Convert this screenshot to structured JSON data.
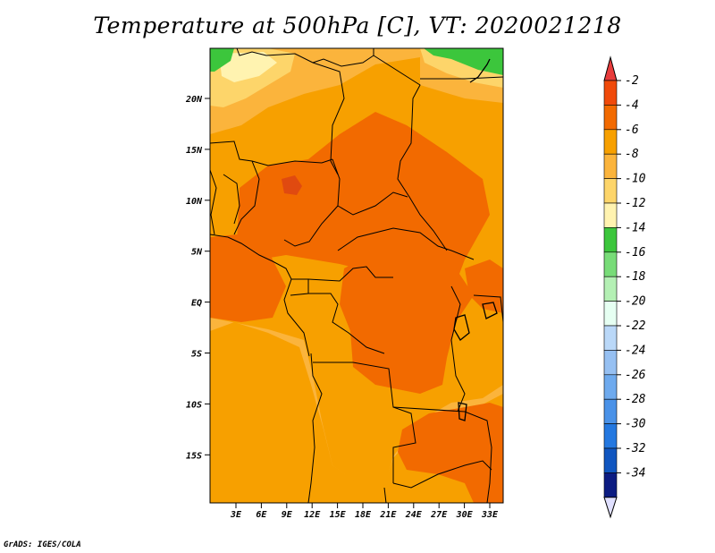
{
  "title": "Temperature at 500hPa [C], VT: 2020021218",
  "credit": "GrADS: IGES/COLA",
  "map": {
    "lat_labels": [
      "20N",
      "15N",
      "10N",
      "5N",
      "EQ",
      "5S",
      "10S",
      "15S"
    ],
    "lon_labels": [
      "3E",
      "6E",
      "9E",
      "12E",
      "15E",
      "18E",
      "21E",
      "24E",
      "27E",
      "30E",
      "33E"
    ],
    "colors": {
      "c0": "#e04a10",
      "c1": "#f26a00",
      "c2": "#f7a000",
      "c3": "#fbb43c",
      "c4": "#fdd56a",
      "c5": "#fff3b0",
      "c6": "#3cc63c"
    }
  },
  "colorbar": {
    "labels": [
      "-2",
      "-4",
      "-6",
      "-8",
      "-10",
      "-12",
      "-14",
      "-16",
      "-18",
      "-20",
      "-22",
      "-24",
      "-26",
      "-28",
      "-30",
      "-32",
      "-34"
    ],
    "colors": [
      "#f04a0a",
      "#f26a00",
      "#f7a000",
      "#fbb43c",
      "#fdd56a",
      "#fff3b0",
      "#3cc63c",
      "#78dc78",
      "#b4f0b4",
      "#e6fff2",
      "#bad8f8",
      "#96c0f2",
      "#6eaaee",
      "#4a92e8",
      "#2478e0",
      "#1056c0",
      "#0c1c82"
    ],
    "top_arrow_color": "#e83c3c",
    "bottom_arrow_color": "#e0e0ff"
  }
}
